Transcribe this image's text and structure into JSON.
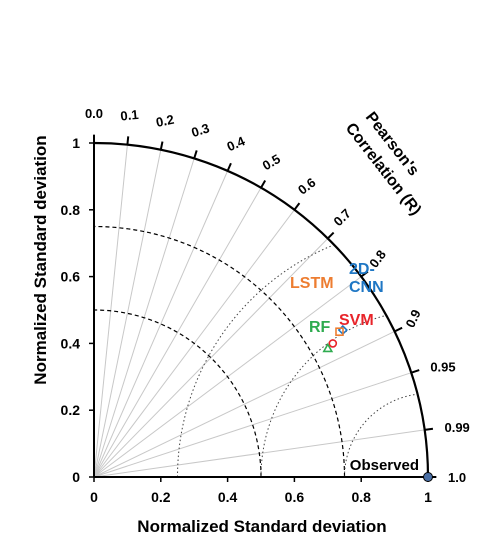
{
  "chart_data": {
    "type": "taylor",
    "xlabel": "Normalized Standard deviation",
    "ylabel": "Normalized Standard deviation",
    "correlation_label": [
      "Pearson's",
      "Correlation (R)"
    ],
    "xlim": [
      0,
      1
    ],
    "ylim": [
      0,
      1
    ],
    "x_ticks": [
      "0",
      "0.2",
      "0.4",
      "0.6",
      "0.8",
      "1"
    ],
    "y_ticks": [
      "0",
      "0.2",
      "0.4",
      "0.6",
      "0.8",
      "1"
    ],
    "correlation_ticks": [
      {
        "label": "0.0",
        "r": 0.0
      },
      {
        "label": "0.1",
        "r": 0.1
      },
      {
        "label": "0.2",
        "r": 0.2
      },
      {
        "label": "0.3",
        "r": 0.3
      },
      {
        "label": "0.4",
        "r": 0.4
      },
      {
        "label": "0.5",
        "r": 0.5
      },
      {
        "label": "0.6",
        "r": 0.6
      },
      {
        "label": "0.7",
        "r": 0.7
      },
      {
        "label": "0.8",
        "r": 0.8
      },
      {
        "label": "0.9",
        "r": 0.9
      },
      {
        "label": "0.95",
        "r": 0.95
      },
      {
        "label": "0.99",
        "r": 0.99
      },
      {
        "label": "1.0",
        "r": 1.0
      }
    ],
    "std_arcs_dashed": [
      0.5,
      0.75
    ],
    "rms_arcs_dotted": [
      0.25,
      0.5,
      0.75
    ],
    "reference": {
      "label": "Observed",
      "std": 1.0,
      "r": 1.0
    },
    "models": [
      {
        "name": "2D-CNN",
        "label_lines": [
          "2D-",
          "CNN"
        ],
        "x": 0.745,
        "y": 0.44,
        "color": "#1f77c4",
        "marker": "diamond"
      },
      {
        "name": "LSTM",
        "label_lines": [
          "LSTM"
        ],
        "x": 0.735,
        "y": 0.435,
        "color": "#ed7d31",
        "marker": "square"
      },
      {
        "name": "SVM",
        "label_lines": [
          "SVM"
        ],
        "x": 0.715,
        "y": 0.4,
        "color": "#e8242a",
        "marker": "circle"
      },
      {
        "name": "RF",
        "label_lines": [
          "RF"
        ],
        "x": 0.7,
        "y": 0.385,
        "color": "#2eab4f",
        "marker": "triangle"
      }
    ]
  }
}
